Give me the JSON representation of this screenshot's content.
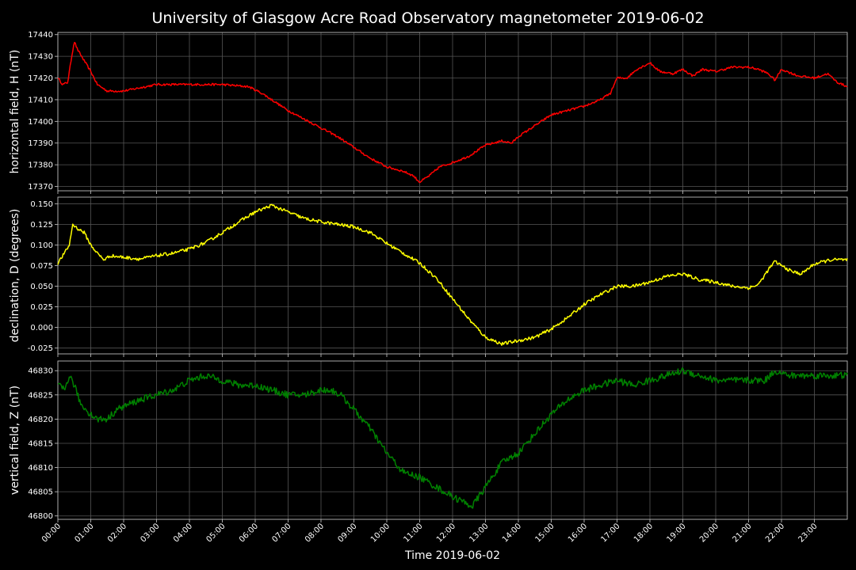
{
  "chart_data": {
    "title": "University of Glasgow Acre Road Observatory magnetometer 2019-06-02",
    "xlabel": "Time 2019-06-02",
    "x_ticks": [
      "00:00",
      "01:00",
      "02:00",
      "03:00",
      "04:00",
      "05:00",
      "06:00",
      "07:00",
      "08:00",
      "09:00",
      "10:00",
      "11:00",
      "12:00",
      "13:00",
      "14:00",
      "15:00",
      "16:00",
      "17:00",
      "18:00",
      "19:00",
      "20:00",
      "21:00",
      "22:00",
      "23:00"
    ],
    "x_range_hours": [
      0,
      24
    ],
    "grid": true,
    "panels": [
      {
        "type": "line",
        "ylabel": "horizontal field, H (nT)",
        "color": "#ff0000",
        "ylim": [
          17368,
          17441
        ],
        "y_ticks": [
          17370,
          17380,
          17390,
          17400,
          17410,
          17420,
          17430,
          17440
        ],
        "tick_decimals": 0,
        "noise": 0.5,
        "points": [
          [
            0,
            17420
          ],
          [
            0.15,
            17417
          ],
          [
            0.3,
            17418
          ],
          [
            0.4,
            17428
          ],
          [
            0.5,
            17437
          ],
          [
            0.6,
            17433
          ],
          [
            0.8,
            17428
          ],
          [
            1.0,
            17423
          ],
          [
            1.2,
            17417
          ],
          [
            1.5,
            17414
          ],
          [
            2.0,
            17414
          ],
          [
            3.0,
            17417
          ],
          [
            4.0,
            17417
          ],
          [
            5.0,
            17417
          ],
          [
            5.8,
            17416
          ],
          [
            6.2,
            17413
          ],
          [
            6.6,
            17409
          ],
          [
            7.0,
            17405
          ],
          [
            7.5,
            17401
          ],
          [
            8.0,
            17397
          ],
          [
            8.5,
            17393
          ],
          [
            9.0,
            17388
          ],
          [
            9.5,
            17383
          ],
          [
            10.0,
            17379
          ],
          [
            10.5,
            17377
          ],
          [
            10.8,
            17375
          ],
          [
            11.0,
            17372
          ],
          [
            11.3,
            17375
          ],
          [
            11.6,
            17379
          ],
          [
            12.0,
            17381
          ],
          [
            12.5,
            17384
          ],
          [
            13.0,
            17389
          ],
          [
            13.5,
            17391
          ],
          [
            13.8,
            17390
          ],
          [
            14.0,
            17393
          ],
          [
            14.3,
            17396
          ],
          [
            14.6,
            17399
          ],
          [
            15.0,
            17403
          ],
          [
            15.5,
            17405
          ],
          [
            16.0,
            17407
          ],
          [
            16.5,
            17410
          ],
          [
            16.8,
            17413
          ],
          [
            17.0,
            17420
          ],
          [
            17.3,
            17420
          ],
          [
            17.6,
            17424
          ],
          [
            18.0,
            17427
          ],
          [
            18.3,
            17423
          ],
          [
            18.7,
            17422
          ],
          [
            19.0,
            17424
          ],
          [
            19.3,
            17421
          ],
          [
            19.6,
            17424
          ],
          [
            20.0,
            17423
          ],
          [
            20.5,
            17425
          ],
          [
            21.0,
            17425
          ],
          [
            21.3,
            17424
          ],
          [
            21.6,
            17422
          ],
          [
            21.8,
            17419
          ],
          [
            22.0,
            17424
          ],
          [
            22.5,
            17421
          ],
          [
            23.0,
            17420
          ],
          [
            23.4,
            17422
          ],
          [
            23.7,
            17418
          ],
          [
            24.0,
            17416
          ]
        ]
      },
      {
        "type": "line",
        "ylabel": "declination, D (degrees)",
        "color": "#ffff00",
        "ylim": [
          -0.032,
          0.158
        ],
        "y_ticks": [
          -0.025,
          0.0,
          0.025,
          0.05,
          0.075,
          0.1,
          0.125,
          0.15
        ],
        "tick_decimals": 3,
        "noise": 0.002,
        "points": [
          [
            0,
            0.078
          ],
          [
            0.2,
            0.09
          ],
          [
            0.35,
            0.1
          ],
          [
            0.45,
            0.125
          ],
          [
            0.6,
            0.12
          ],
          [
            0.8,
            0.115
          ],
          [
            1.0,
            0.1
          ],
          [
            1.2,
            0.09
          ],
          [
            1.4,
            0.082
          ],
          [
            1.6,
            0.087
          ],
          [
            2.0,
            0.085
          ],
          [
            2.5,
            0.083
          ],
          [
            3.0,
            0.087
          ],
          [
            3.5,
            0.09
          ],
          [
            4.0,
            0.095
          ],
          [
            4.5,
            0.103
          ],
          [
            5.0,
            0.115
          ],
          [
            5.5,
            0.128
          ],
          [
            6.0,
            0.14
          ],
          [
            6.5,
            0.148
          ],
          [
            7.0,
            0.14
          ],
          [
            7.5,
            0.132
          ],
          [
            8.0,
            0.128
          ],
          [
            8.5,
            0.125
          ],
          [
            9.0,
            0.122
          ],
          [
            9.5,
            0.115
          ],
          [
            10.0,
            0.102
          ],
          [
            10.5,
            0.09
          ],
          [
            11.0,
            0.078
          ],
          [
            11.5,
            0.06
          ],
          [
            12.0,
            0.035
          ],
          [
            12.5,
            0.01
          ],
          [
            13.0,
            -0.012
          ],
          [
            13.5,
            -0.02
          ],
          [
            14.0,
            -0.016
          ],
          [
            14.5,
            -0.012
          ],
          [
            15.0,
            -0.002
          ],
          [
            15.5,
            0.012
          ],
          [
            16.0,
            0.028
          ],
          [
            16.5,
            0.04
          ],
          [
            17.0,
            0.05
          ],
          [
            17.5,
            0.05
          ],
          [
            18.0,
            0.055
          ],
          [
            18.5,
            0.062
          ],
          [
            19.0,
            0.065
          ],
          [
            19.5,
            0.058
          ],
          [
            20.0,
            0.055
          ],
          [
            20.5,
            0.05
          ],
          [
            21.0,
            0.048
          ],
          [
            21.3,
            0.052
          ],
          [
            21.6,
            0.07
          ],
          [
            21.8,
            0.08
          ],
          [
            22.0,
            0.075
          ],
          [
            22.3,
            0.068
          ],
          [
            22.6,
            0.065
          ],
          [
            23.0,
            0.077
          ],
          [
            23.5,
            0.082
          ],
          [
            24.0,
            0.082
          ]
        ]
      },
      {
        "type": "line",
        "ylabel": "vertical field, Z (nT)",
        "color": "#008000",
        "ylim": [
          46799.3,
          46832.0
        ],
        "y_ticks": [
          46800,
          46805,
          46810,
          46815,
          46820,
          46825,
          46830
        ],
        "tick_decimals": 0,
        "noise": 0.7,
        "points": [
          [
            0,
            46827
          ],
          [
            0.2,
            46826
          ],
          [
            0.35,
            46829
          ],
          [
            0.5,
            46827
          ],
          [
            0.7,
            46823
          ],
          [
            1.0,
            46821
          ],
          [
            1.2,
            46820
          ],
          [
            1.5,
            46820
          ],
          [
            1.8,
            46822
          ],
          [
            2.5,
            46824
          ],
          [
            3.0,
            46825
          ],
          [
            3.5,
            46826
          ],
          [
            4.0,
            46828
          ],
          [
            4.5,
            46829
          ],
          [
            5.0,
            46828
          ],
          [
            5.5,
            46827
          ],
          [
            6.0,
            46827
          ],
          [
            6.5,
            46826
          ],
          [
            7.0,
            46825
          ],
          [
            7.5,
            46825
          ],
          [
            8.0,
            46826
          ],
          [
            8.3,
            46826
          ],
          [
            8.6,
            46825
          ],
          [
            9.0,
            46822
          ],
          [
            9.5,
            46818
          ],
          [
            10.0,
            46813
          ],
          [
            10.5,
            46809
          ],
          [
            11.0,
            46808
          ],
          [
            11.5,
            46806
          ],
          [
            12.0,
            46804
          ],
          [
            12.3,
            46803
          ],
          [
            12.6,
            46802
          ],
          [
            13.0,
            46806
          ],
          [
            13.5,
            46811
          ],
          [
            14.0,
            46813
          ],
          [
            14.5,
            46817
          ],
          [
            15.0,
            46821
          ],
          [
            15.5,
            46824
          ],
          [
            16.0,
            46826
          ],
          [
            16.5,
            46827
          ],
          [
            17.0,
            46828
          ],
          [
            17.5,
            46827
          ],
          [
            18.0,
            46828
          ],
          [
            18.5,
            46829
          ],
          [
            19.0,
            46830
          ],
          [
            19.5,
            46829
          ],
          [
            20.0,
            46828
          ],
          [
            21.0,
            46828
          ],
          [
            21.5,
            46828
          ],
          [
            21.8,
            46830
          ],
          [
            22.2,
            46829
          ],
          [
            23.0,
            46829
          ],
          [
            24.0,
            46829
          ]
        ]
      }
    ]
  }
}
